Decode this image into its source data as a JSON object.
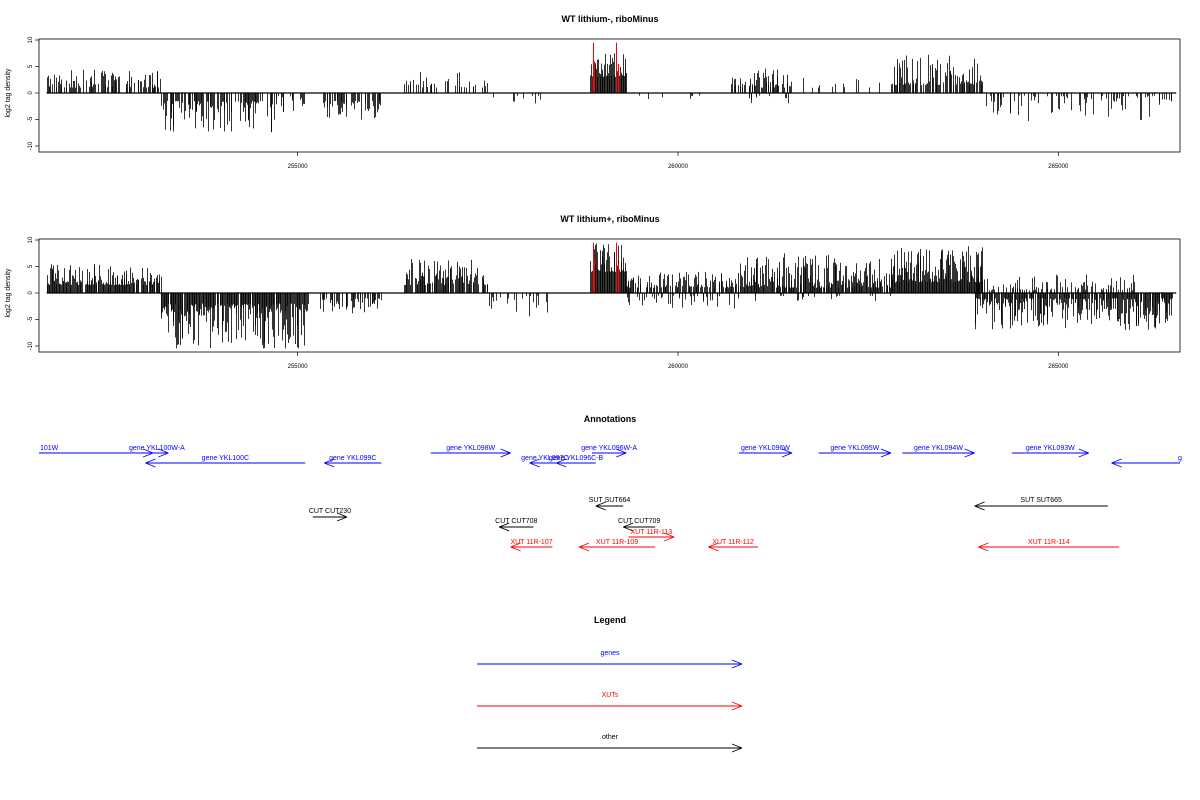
{
  "chart_data": [
    {
      "type": "bar",
      "title": "WT lithium-, riboMinus",
      "ylabel": "log2 tag density",
      "xlim": [
        251600,
        266600
      ],
      "ylim": [
        -11,
        10
      ],
      "yticks": [
        10,
        5,
        0,
        -5,
        -10
      ],
      "xticks": [
        "255000",
        "260000",
        "265000"
      ],
      "xtick_values": [
        255000,
        260000,
        265000
      ],
      "colors": {
        "default": "#000000",
        "highlight": "#ff0000"
      },
      "segments": [
        {
          "from": 251700,
          "to": 253200,
          "min": 1,
          "max": 4.5,
          "sign": 1,
          "density": 0.5
        },
        {
          "from": 253200,
          "to": 254700,
          "min": 1.5,
          "max": 7.5,
          "sign": -1,
          "density": 0.55
        },
        {
          "from": 254700,
          "to": 255100,
          "min": 0.5,
          "max": 4,
          "sign": -1,
          "density": 0.3
        },
        {
          "from": 255300,
          "to": 256100,
          "min": 1.5,
          "max": 5,
          "sign": -1,
          "density": 0.55
        },
        {
          "from": 256400,
          "to": 257500,
          "min": 1,
          "max": 4,
          "sign": 1,
          "density": 0.25
        },
        {
          "from": 257500,
          "to": 258300,
          "min": 0.5,
          "max": 2,
          "sign": -1,
          "density": 0.1
        },
        {
          "from": 258850,
          "to": 259320,
          "min": 3,
          "max": 7.5,
          "sign": 1,
          "density": 1
        },
        {
          "from": 259400,
          "to": 260300,
          "min": 0.5,
          "max": 1.5,
          "sign": -1,
          "density": 0.06
        },
        {
          "from": 260700,
          "to": 261500,
          "min": 1,
          "max": 5,
          "sign": 1,
          "density": 0.55
        },
        {
          "from": 260900,
          "to": 261500,
          "min": 0.5,
          "max": 2,
          "sign": -1,
          "density": 0.2
        },
        {
          "from": 261600,
          "to": 262700,
          "min": 1,
          "max": 3,
          "sign": 1,
          "density": 0.12
        },
        {
          "from": 262800,
          "to": 264000,
          "min": 1.5,
          "max": 7.5,
          "sign": 1,
          "density": 0.65
        },
        {
          "from": 264000,
          "to": 266500,
          "min": 0.5,
          "max": 5.5,
          "sign": -1,
          "density": 0.3
        }
      ],
      "red_spikes": [
        {
          "x": 258880,
          "value": 9.5
        },
        {
          "x": 258900,
          "value": 6
        },
        {
          "x": 259190,
          "value": 9.5
        },
        {
          "x": 259210,
          "value": 5.5
        }
      ]
    },
    {
      "type": "bar",
      "title": "WT lithium+, riboMinus",
      "ylabel": "log2 tag density",
      "xlim": [
        251600,
        266600
      ],
      "ylim": [
        -11,
        10
      ],
      "yticks": [
        10,
        5,
        0,
        -5,
        -10
      ],
      "xticks": [
        "255000",
        "260000",
        "265000"
      ],
      "xtick_values": [
        255000,
        260000,
        265000
      ],
      "colors": {
        "default": "#000000",
        "highlight": "#ff0000"
      },
      "segments": [
        {
          "from": 251700,
          "to": 253200,
          "min": 1.5,
          "max": 5.5,
          "sign": 1,
          "density": 0.85
        },
        {
          "from": 253200,
          "to": 255150,
          "min": 2,
          "max": 10.5,
          "sign": -1,
          "density": 0.9
        },
        {
          "from": 255300,
          "to": 256100,
          "min": 1,
          "max": 4,
          "sign": -1,
          "density": 0.6
        },
        {
          "from": 256400,
          "to": 257500,
          "min": 1.5,
          "max": 6.5,
          "sign": 1,
          "density": 0.8
        },
        {
          "from": 257500,
          "to": 258300,
          "min": 0.5,
          "max": 4.5,
          "sign": -1,
          "density": 0.2
        },
        {
          "from": 258850,
          "to": 259320,
          "min": 4,
          "max": 9.5,
          "sign": 1,
          "density": 1
        },
        {
          "from": 259320,
          "to": 260800,
          "min": 1,
          "max": 4,
          "sign": 1,
          "density": 0.6
        },
        {
          "from": 259320,
          "to": 260800,
          "min": 0.5,
          "max": 3,
          "sign": -1,
          "density": 0.2
        },
        {
          "from": 260800,
          "to": 262800,
          "min": 1,
          "max": 7.5,
          "sign": 1,
          "density": 0.85
        },
        {
          "from": 261000,
          "to": 262800,
          "min": 0.5,
          "max": 1.5,
          "sign": -1,
          "density": 0.1
        },
        {
          "from": 262800,
          "to": 264000,
          "min": 2,
          "max": 9,
          "sign": 1,
          "density": 1
        },
        {
          "from": 263900,
          "to": 266500,
          "min": 1,
          "max": 7,
          "sign": -1,
          "density": 0.85
        },
        {
          "from": 263900,
          "to": 266000,
          "min": 0.5,
          "max": 3.5,
          "sign": 1,
          "density": 0.35
        }
      ],
      "red_spikes": [
        {
          "x": 258880,
          "value": 9.5
        },
        {
          "x": 258900,
          "value": 6
        },
        {
          "x": 259190,
          "value": 9.5
        },
        {
          "x": 259210,
          "value": 5.5
        }
      ]
    }
  ],
  "annotations": {
    "title": "Annotations",
    "genes": [
      {
        "label": "101W",
        "start": 251600,
        "end": 253100,
        "dir": "right",
        "color": "#0000ff",
        "row": 0
      },
      {
        "label": "gene YKL100W-A",
        "start": 253000,
        "end": 253300,
        "dir": "right",
        "color": "#0000ff",
        "row": 0
      },
      {
        "label": "gene YKL100C",
        "start": 253000,
        "end": 255100,
        "dir": "left",
        "color": "#0000ff",
        "row": 1
      },
      {
        "label": "gene YKL099C",
        "start": 255350,
        "end": 256100,
        "dir": "left",
        "color": "#0000ff",
        "row": 1
      },
      {
        "label": "gene YKL098W",
        "start": 256750,
        "end": 257800,
        "dir": "right",
        "color": "#0000ff",
        "row": 0
      },
      {
        "label": "gene YKL097C",
        "start": 258050,
        "end": 258450,
        "dir": "left",
        "color": "#0000ff",
        "row": 1
      },
      {
        "label": "gene YKL096C-B",
        "start": 258400,
        "end": 258920,
        "dir": "left",
        "color": "#0000ff",
        "row": 1
      },
      {
        "label": "gene YKL096W-A",
        "start": 258870,
        "end": 259320,
        "dir": "right",
        "color": "#0000ff",
        "row": 0
      },
      {
        "label": "gene YKL096W",
        "start": 260800,
        "end": 261500,
        "dir": "right",
        "color": "#0000ff",
        "row": 0
      },
      {
        "label": "gene YKL095W",
        "start": 261850,
        "end": 262800,
        "dir": "right",
        "color": "#0000ff",
        "row": 0
      },
      {
        "label": "gene YKL094W",
        "start": 262950,
        "end": 263900,
        "dir": "right",
        "color": "#0000ff",
        "row": 0
      },
      {
        "label": "gene YKL093W",
        "start": 264390,
        "end": 265400,
        "dir": "right",
        "color": "#0000ff",
        "row": 0
      },
      {
        "label": "g",
        "start": 265700,
        "end": 266600,
        "dir": "left",
        "color": "#0000ff",
        "row": 1
      }
    ],
    "other": [
      {
        "label": "SUT SUT664",
        "start": 258920,
        "end": 259280,
        "dir": "left",
        "color": "#000000",
        "row": 0
      },
      {
        "label": "SUT SUT665",
        "start": 263900,
        "end": 265650,
        "dir": "left",
        "color": "#000000",
        "row": 0
      },
      {
        "label": "CUT CUT230",
        "start": 255200,
        "end": 255650,
        "dir": "right",
        "color": "#000000",
        "row": 1
      },
      {
        "label": "CUT CUT708",
        "start": 257650,
        "end": 258100,
        "dir": "left",
        "color": "#000000",
        "row": 2
      },
      {
        "label": "CUT CUT709",
        "start": 259280,
        "end": 259700,
        "dir": "left",
        "color": "#000000",
        "row": 2
      }
    ],
    "xuts": [
      {
        "label": "XUT 11R-113",
        "start": 259350,
        "end": 259950,
        "dir": "right",
        "color": "#ff0000",
        "row": 0
      },
      {
        "label": "XUT 11R-107",
        "start": 257800,
        "end": 258350,
        "dir": "left",
        "color": "#ff0000",
        "row": 1
      },
      {
        "label": "XUT 11R-109",
        "start": 258700,
        "end": 259700,
        "dir": "left",
        "color": "#ff0000",
        "row": 1
      },
      {
        "label": "XUT 11R-112",
        "start": 260400,
        "end": 261050,
        "dir": "left",
        "color": "#ff0000",
        "row": 1
      },
      {
        "label": "XUT 11R-114",
        "start": 263950,
        "end": 265800,
        "dir": "left",
        "color": "#ff0000",
        "row": 1
      }
    ]
  },
  "legend": {
    "title": "Legend",
    "items": [
      {
        "label": "genes",
        "color": "#0000ff"
      },
      {
        "label": "XUTs",
        "color": "#ff0000"
      },
      {
        "label": "other",
        "color": "#000000"
      }
    ]
  }
}
